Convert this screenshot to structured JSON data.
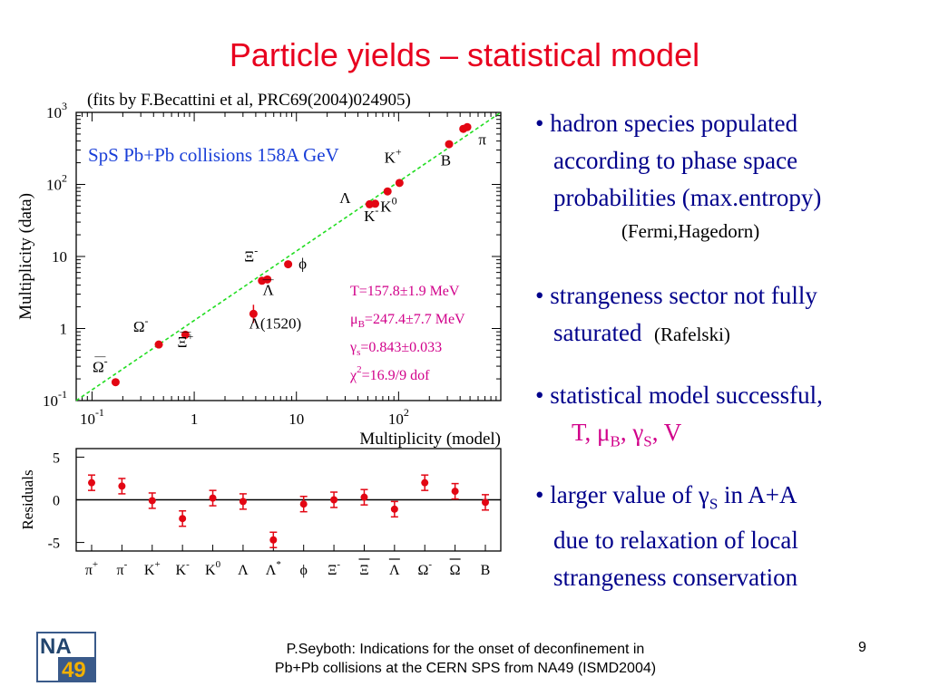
{
  "slide": {
    "title": "Particle yields – statistical model",
    "subtitle": "(fits by F.Becattini et al, PRC69(2004)024905)",
    "page_number": "9",
    "footer_line1": "P.Seyboth: Indications for the onset of deconfinement in",
    "footer_line2": "Pb+Pb collisions at the CERN SPS from NA49   (ISMD2004)",
    "logo_text_top": "NA",
    "logo_text_bottom": "49"
  },
  "bullets": [
    {
      "lines": [
        "• hadron species populated",
        "according to phase space",
        "probabilities (max.entropy)"
      ],
      "note": "(Fermi,Hagedorn)"
    },
    {
      "line1": "• strangeness sector not fully",
      "line2_main": "saturated",
      "line2_note": "(Rafelski)"
    },
    {
      "line1": "• statistical model successful,",
      "params": "T, μB, γS, V"
    },
    {
      "line1_a": "• larger value of ",
      "line1_sym": "γS",
      "line1_b": " in A+A",
      "line2": "due to relaxation of local",
      "line3": "strangeness conservation"
    }
  ],
  "colors": {
    "title": "#e8001e",
    "bullet_text": "#00008b",
    "points": "#e30613",
    "fit_line": "#22dd22",
    "legend_text": "#d1008a",
    "panel_label": "#1a3fd8"
  },
  "chart_data": [
    {
      "type": "scatter",
      "panel_label": "SpS Pb+Pb collisions 158A GeV",
      "xlabel": "Multiplicity (model)",
      "ylabel": "Multiplicity (data)",
      "scale": "log-log",
      "xlim": [
        0.07,
        1000
      ],
      "ylim": [
        0.1,
        1000
      ],
      "x_ticks": [
        {
          "v": 0.1,
          "base": "10",
          "exp": "-1"
        },
        {
          "v": 1,
          "base": "1",
          "exp": ""
        },
        {
          "v": 10,
          "base": "10",
          "exp": ""
        },
        {
          "v": 100,
          "base": "10",
          "exp": "2"
        }
      ],
      "y_ticks": [
        {
          "v": 0.1,
          "base": "10",
          "exp": "-1"
        },
        {
          "v": 1,
          "base": "1",
          "exp": ""
        },
        {
          "v": 10,
          "base": "10",
          "exp": ""
        },
        {
          "v": 100,
          "base": "10",
          "exp": "2"
        },
        {
          "v": 1000,
          "base": "10",
          "exp": "3"
        }
      ],
      "fit_line": "y = x",
      "points": [
        {
          "x": 0.17,
          "y": 0.18
        },
        {
          "x": 0.45,
          "y": 0.6
        },
        {
          "x": 0.82,
          "y": 0.82
        },
        {
          "x": 3.8,
          "y": 1.6
        },
        {
          "x": 4.6,
          "y": 4.6
        },
        {
          "x": 5.2,
          "y": 4.8
        },
        {
          "x": 8.3,
          "y": 7.8
        },
        {
          "x": 52,
          "y": 53
        },
        {
          "x": 59,
          "y": 54
        },
        {
          "x": 78,
          "y": 80
        },
        {
          "x": 102,
          "y": 105
        },
        {
          "x": 312,
          "y": 362
        },
        {
          "x": 430,
          "y": 590
        },
        {
          "x": 470,
          "y": 625
        }
      ],
      "point_labels": [
        {
          "text": "Ω",
          "sup": "-",
          "over": "—",
          "x": 0.12,
          "y": 0.25
        },
        {
          "text": "Ω",
          "sup": "-",
          "over": "",
          "x": 0.3,
          "y": 0.9
        },
        {
          "text": "Ξ",
          "sup": "+",
          "over": "—",
          "x": 0.82,
          "y": 0.55
        },
        {
          "text": "Λ(1520)",
          "sup": "",
          "over": "",
          "x": 6.2,
          "y": 1.0
        },
        {
          "text": "Ξ",
          "sup": "-",
          "over": "",
          "x": 3.6,
          "y": 8.5
        },
        {
          "text": "Λ",
          "sup": "",
          "over": "—",
          "x": 5.3,
          "y": 2.9
        },
        {
          "text": "ϕ",
          "sup": "",
          "over": "",
          "x": 11.5,
          "y": 6.8
        },
        {
          "text": "Λ",
          "sup": "",
          "over": "",
          "x": 30,
          "y": 55
        },
        {
          "text": "K",
          "sup": "-",
          "over": "",
          "x": 54,
          "y": 31
        },
        {
          "text": "K",
          "sup": "0",
          "over": "",
          "x": 80,
          "y": 42
        },
        {
          "text": "K",
          "sup": "+",
          "over": "",
          "x": 88,
          "y": 200
        },
        {
          "text": "B",
          "sup": "",
          "over": "",
          "x": 290,
          "y": 185
        },
        {
          "text": "π",
          "sup": "",
          "over": "",
          "x": 660,
          "y": 360
        }
      ],
      "fit_results": [
        {
          "main": "T=157.8±1.9 MeV"
        },
        {
          "pre": "μ",
          "sub": "B",
          "post": "=247.4±7.7 MeV"
        },
        {
          "pre": "γ",
          "sub": "s",
          "post": "=0.843±0.033"
        },
        {
          "pre": "χ",
          "sup": "2",
          "post": "=16.9/9 dof"
        }
      ]
    },
    {
      "type": "scatter",
      "ylabel": "Residuals",
      "ylim": [
        -6,
        6
      ],
      "y_ticks": [
        5,
        0,
        -5
      ],
      "categories": [
        {
          "base": "π",
          "sup": "+",
          "over": false
        },
        {
          "base": "π",
          "sup": "-",
          "over": false
        },
        {
          "base": "K",
          "sup": "+",
          "over": false
        },
        {
          "base": "K",
          "sup": "-",
          "over": false
        },
        {
          "base": "K",
          "sup": "0",
          "over": false
        },
        {
          "base": "Λ",
          "sup": "",
          "over": false
        },
        {
          "base": "Λ",
          "sup": "*",
          "over": false
        },
        {
          "base": "ϕ",
          "sup": "",
          "over": false
        },
        {
          "base": "Ξ",
          "sup": "-",
          "over": false
        },
        {
          "base": "Ξ",
          "sup": "",
          "over": true
        },
        {
          "base": "Λ",
          "sup": "",
          "over": true
        },
        {
          "base": "Ω",
          "sup": "-",
          "over": false
        },
        {
          "base": "Ω",
          "sup": "",
          "over": true
        },
        {
          "base": "B",
          "sup": "",
          "over": false
        }
      ],
      "values": [
        2.0,
        1.6,
        -0.1,
        -2.2,
        0.2,
        -0.2,
        -4.7,
        -0.5,
        0.0,
        0.3,
        -1.1,
        2.0,
        1.0,
        -0.3
      ],
      "errors": [
        0.9,
        0.9,
        0.9,
        0.9,
        0.9,
        0.9,
        0.9,
        0.9,
        0.9,
        0.9,
        0.9,
        0.9,
        0.9,
        0.9
      ]
    }
  ]
}
